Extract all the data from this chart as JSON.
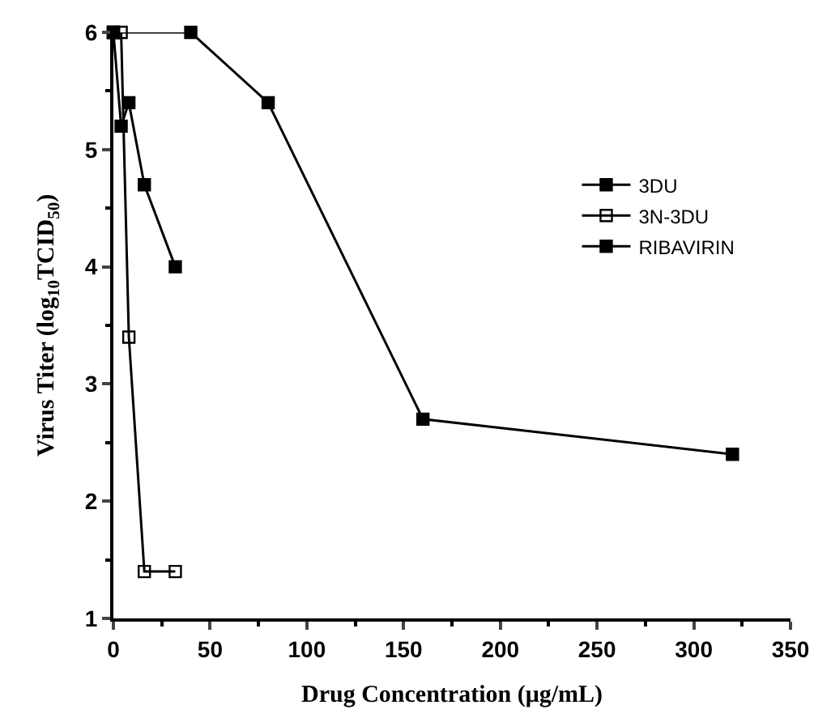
{
  "chart_data": {
    "type": "line",
    "xlabel": "Drug Concentration (μg/mL)",
    "ylabel": "Virus Titer (log$_{10}$TCID$_{50}$)",
    "xlim": [
      0,
      350
    ],
    "xticks": [
      0,
      50,
      100,
      150,
      200,
      250,
      300,
      350
    ],
    "ylim": [
      1,
      6
    ],
    "yticks": [
      1,
      2,
      3,
      4,
      5,
      6
    ],
    "legend": "right",
    "line_style": "solid",
    "series": [
      {
        "name": "3DU",
        "color": "#000000",
        "marker": "square",
        "x": [
          0,
          4,
          8,
          16,
          32
        ],
        "values": [
          6,
          5.2,
          5.4,
          4.7,
          4.0
        ]
      },
      {
        "name": "3N-3DU",
        "color": "#000000",
        "marker": "square-open",
        "x": [
          0,
          4,
          8,
          16,
          32
        ],
        "values": [
          6,
          6,
          3.4,
          1.4,
          1.4
        ]
      },
      {
        "name": "RIBAVIRIN",
        "color": "#000000",
        "marker": "square",
        "x": [
          0,
          40,
          80,
          160,
          320
        ],
        "values": [
          6,
          6,
          5.4,
          2.7,
          2.4
        ]
      }
    ]
  }
}
